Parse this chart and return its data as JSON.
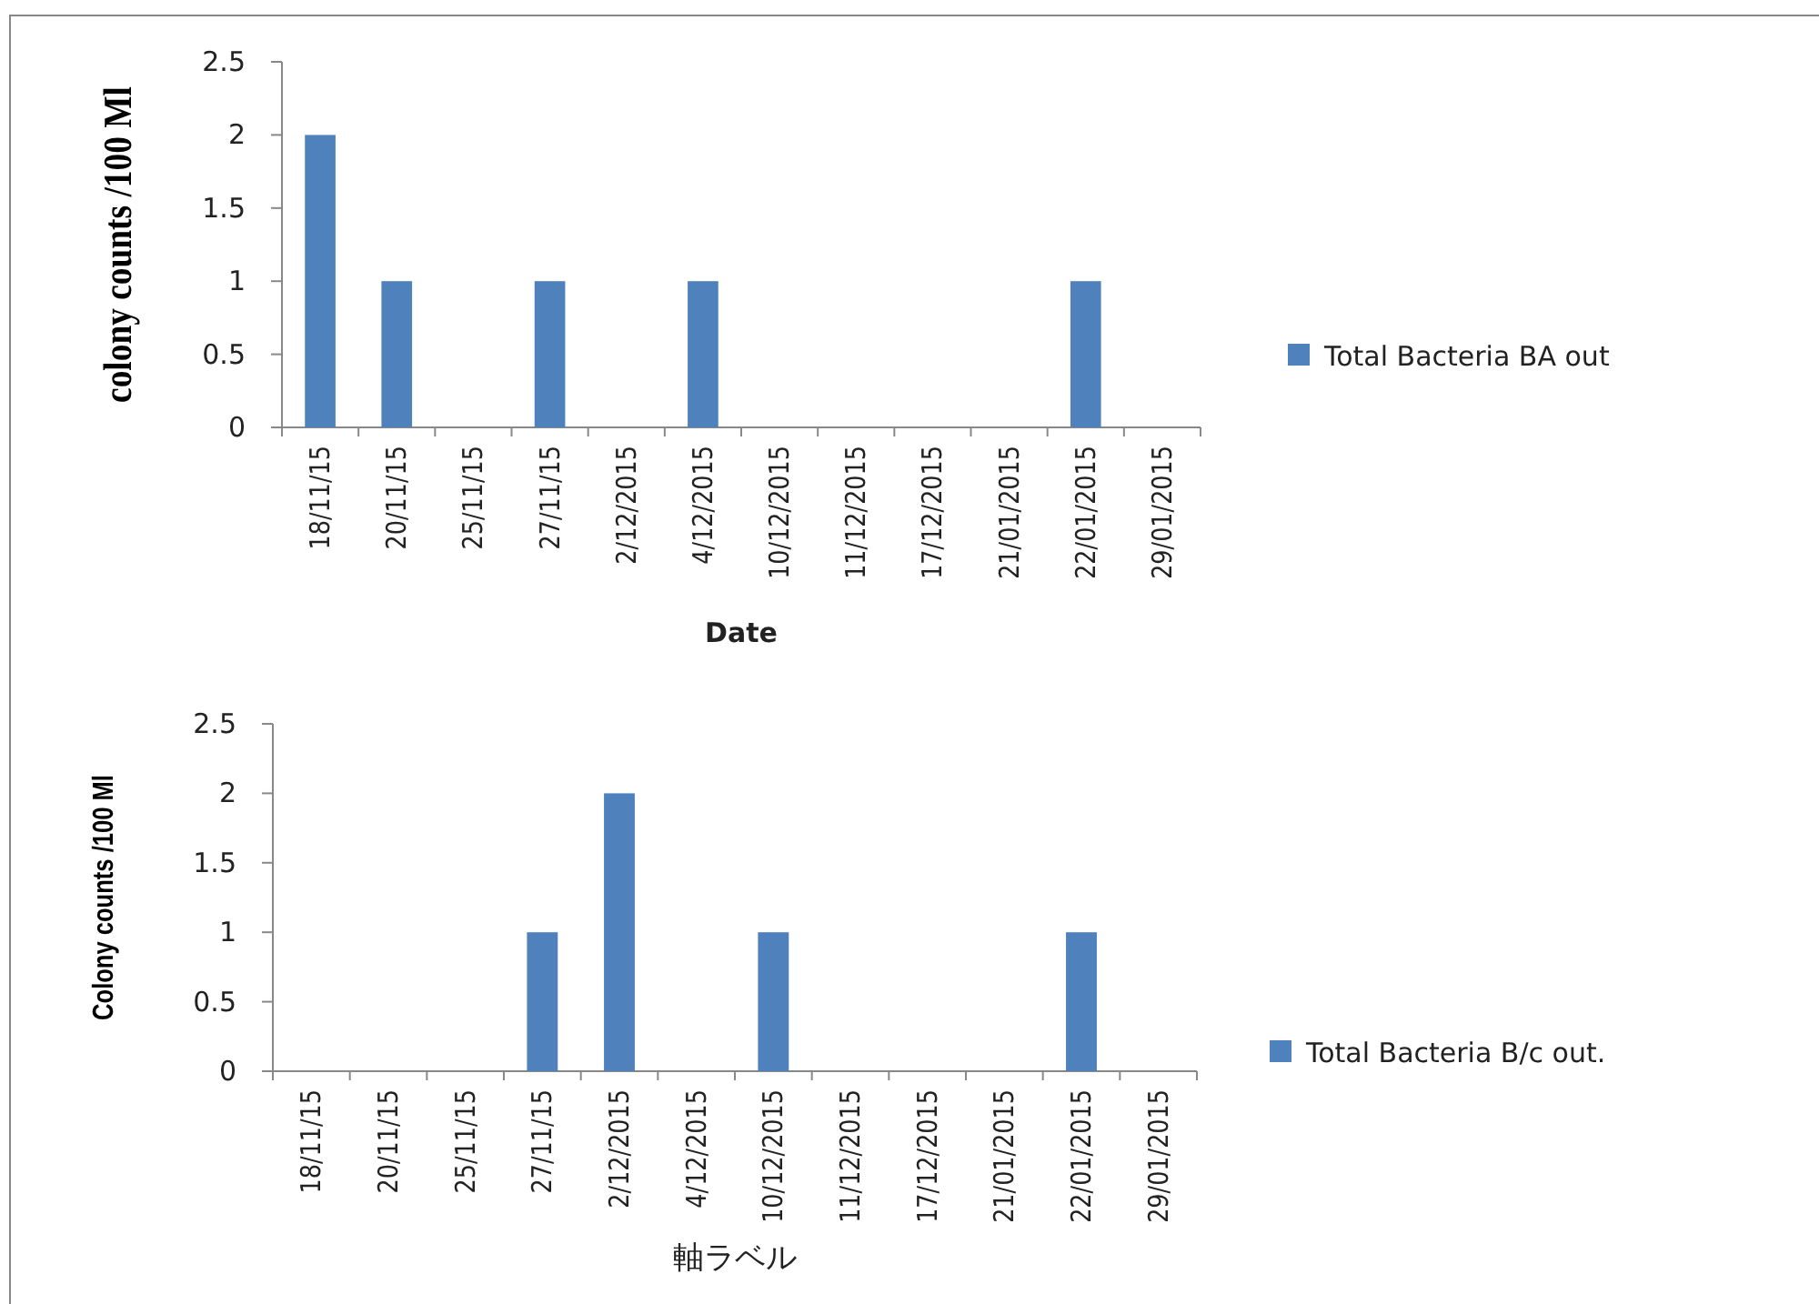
{
  "chart_data": [
    {
      "type": "bar",
      "categories": [
        "18/11/15",
        "20/11/15",
        "25/11/15",
        "27/11/15",
        "2/12/2015",
        "4/12/2015",
        "10/12/2015",
        "11/12/2015",
        "17/12/2015",
        "21/01/2015",
        "22/01/2015",
        "29/01/2015"
      ],
      "series": [
        {
          "name": "Total Bacteria BA out",
          "color": "#4f81bd",
          "values": [
            2,
            1,
            0,
            1,
            0,
            1,
            0,
            0,
            0,
            0,
            1,
            0
          ]
        }
      ],
      "xlabel": "Date",
      "ylabel": "colony counts /100 Ml",
      "ylim": [
        0,
        2.5
      ],
      "yticks": [
        0,
        0.5,
        1,
        1.5,
        2,
        2.5
      ],
      "grid": false,
      "legend": "right"
    },
    {
      "type": "bar",
      "categories": [
        "18/11/15",
        "20/11/15",
        "25/11/15",
        "27/11/15",
        "2/12/2015",
        "4/12/2015",
        "10/12/2015",
        "11/12/2015",
        "17/12/2015",
        "21/01/2015",
        "22/01/2015",
        "29/01/2015"
      ],
      "series": [
        {
          "name": "Total Bacteria B/c out.",
          "color": "#4f81bd",
          "values": [
            0,
            0,
            0,
            1,
            2,
            0,
            1,
            0,
            0,
            0,
            1,
            0
          ]
        }
      ],
      "xlabel": "軸ラベル",
      "ylabel": "Colony counts /100 Ml",
      "ylim": [
        0,
        2.5
      ],
      "yticks": [
        0,
        0.5,
        1,
        1.5,
        2,
        2.5
      ],
      "grid": false,
      "legend": "right"
    }
  ]
}
